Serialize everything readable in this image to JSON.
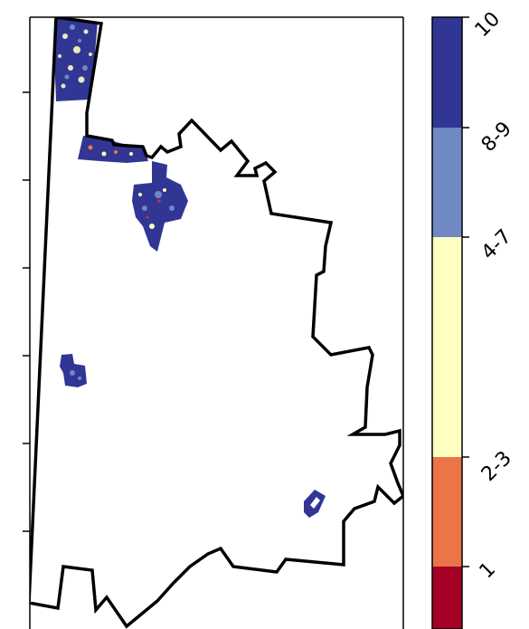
{
  "map": {
    "colorbar": {
      "classes": [
        {
          "label": "1",
          "color": "#a50026"
        },
        {
          "label": "2-3",
          "color": "#ec7548"
        },
        {
          "label": "4-7",
          "color": "#fefec1"
        },
        {
          "label": "8-9",
          "color": "#7088c3"
        },
        {
          "label": "10",
          "color": "#313694"
        }
      ],
      "tick_labels": [
        "1",
        "2-3",
        "4-7",
        "8-9",
        "10"
      ]
    },
    "colors": {
      "boundary": "#000000",
      "patch_primary": "#313694",
      "patch_secondary": "#7088c3",
      "patch_light": "#fefec1",
      "patch_hot": "#d73027"
    },
    "grid": false,
    "legend_placement": "right"
  }
}
